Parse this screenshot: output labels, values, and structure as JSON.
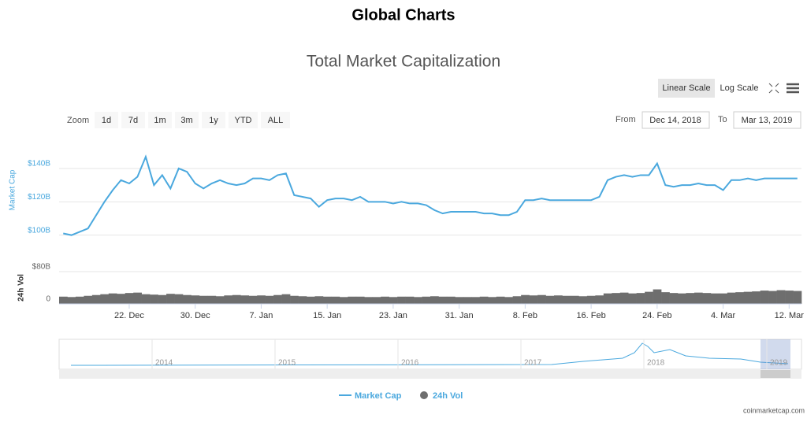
{
  "header": {
    "title": "Global Charts"
  },
  "controls": {
    "scales": [
      "Linear Scale",
      "Log Scale"
    ],
    "zoom_label": "Zoom",
    "zoom_buttons": [
      "1d",
      "7d",
      "1m",
      "3m",
      "1y",
      "YTD",
      "ALL"
    ],
    "from_label": "From",
    "from": "Dec 14, 2018",
    "to_label": "To",
    "to": "Mar 13, 2019"
  },
  "chart_data": {
    "type": "line",
    "title": "Total Market Capitalization",
    "categories": [
      null,
      null,
      null,
      null,
      null,
      null,
      null,
      null,
      "22. Dec",
      null,
      null,
      null,
      null,
      null,
      null,
      null,
      "30. Dec",
      null,
      null,
      null,
      null,
      null,
      null,
      null,
      "7. Jan",
      null,
      null,
      null,
      null,
      null,
      null,
      null,
      "15. Jan",
      null,
      null,
      null,
      null,
      null,
      null,
      null,
      "23. Jan",
      null,
      null,
      null,
      null,
      null,
      null,
      null,
      "31. Jan",
      null,
      null,
      null,
      null,
      null,
      null,
      null,
      "8. Feb",
      null,
      null,
      null,
      null,
      null,
      null,
      null,
      "16. Feb",
      null,
      null,
      null,
      null,
      null,
      null,
      null,
      "24. Feb",
      null,
      null,
      null,
      null,
      null,
      null,
      null,
      "4. Mar",
      null,
      null,
      null,
      null,
      null,
      null,
      null,
      "12. Mar",
      null
    ],
    "series": [
      {
        "name": "Market Cap",
        "color": "#4aa8de",
        "values": [
          101,
          100,
          102,
          104,
          112,
          120,
          127,
          133,
          131,
          135,
          147,
          130,
          136,
          128,
          140,
          138,
          131,
          128,
          131,
          133,
          131,
          130,
          131,
          134,
          134,
          133,
          136,
          137,
          124,
          123,
          122,
          117,
          121,
          122,
          122,
          121,
          123,
          120,
          120,
          120,
          119,
          120,
          119,
          119,
          118,
          115,
          113,
          114,
          114,
          114,
          114,
          113,
          113,
          112,
          112,
          114,
          121,
          121,
          122,
          121,
          121,
          121,
          121,
          121,
          121,
          123,
          133,
          135,
          136,
          135,
          136,
          136,
          143,
          130,
          129,
          130,
          130,
          131,
          130,
          130,
          127,
          133,
          133,
          134,
          133,
          134,
          134,
          134,
          134,
          134
        ]
      },
      {
        "name": "24h Vol",
        "color": "#6e6e6e",
        "axis": "y2",
        "values": [
          18,
          17,
          18,
          20,
          22,
          24,
          26,
          25,
          27,
          28,
          24,
          23,
          22,
          25,
          24,
          22,
          21,
          20,
          20,
          19,
          21,
          22,
          21,
          20,
          21,
          20,
          22,
          24,
          20,
          19,
          18,
          19,
          18,
          18,
          17,
          18,
          18,
          17,
          17,
          18,
          17,
          18,
          18,
          17,
          18,
          19,
          18,
          18,
          17,
          17,
          17,
          18,
          17,
          18,
          17,
          19,
          22,
          21,
          22,
          20,
          21,
          20,
          20,
          19,
          20,
          21,
          26,
          27,
          28,
          26,
          27,
          30,
          36,
          29,
          27,
          26,
          27,
          28,
          27,
          26,
          26,
          28,
          29,
          30,
          31,
          33,
          32,
          34,
          33,
          32
        ]
      }
    ],
    "ylabel": "Market Cap",
    "ylim": [
      97,
      157
    ],
    "yticks": [
      {
        "value": 100,
        "label": "$100B"
      },
      {
        "value": 120,
        "label": "$120B"
      },
      {
        "value": 140,
        "label": "$140B"
      }
    ],
    "y2label": "24h Vol",
    "y2lim": [
      0,
      80
    ],
    "y2ticks": [
      0,
      {
        "value": 80,
        "label": "$80B"
      }
    ],
    "grid": true
  },
  "navigator": {
    "labels": [
      "2014",
      "2015",
      "2016",
      "2017",
      "2018",
      "2019"
    ]
  },
  "credit": "coinmarketcap.com"
}
